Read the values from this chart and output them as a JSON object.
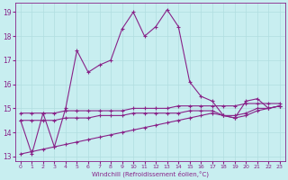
{
  "xlabel": "Windchill (Refroidissement éolien,°C)",
  "background_color": "#c8eef0",
  "grid_color": "#b0dde0",
  "line_color": "#882288",
  "xlim": [
    -0.5,
    23.5
  ],
  "ylim": [
    12.8,
    19.4
  ],
  "yticks": [
    13,
    14,
    15,
    16,
    17,
    18,
    19
  ],
  "xticks": [
    0,
    1,
    2,
    3,
    4,
    5,
    6,
    7,
    8,
    9,
    10,
    11,
    12,
    13,
    14,
    15,
    16,
    17,
    18,
    19,
    20,
    21,
    22,
    23
  ],
  "s1_x": [
    0,
    1,
    2,
    3,
    4,
    5,
    6,
    7,
    8,
    9,
    10,
    11,
    12,
    13,
    14,
    15,
    16,
    17,
    18,
    19,
    20,
    21,
    22,
    23
  ],
  "s1_y": [
    14.5,
    13.1,
    14.8,
    13.4,
    15.0,
    17.4,
    16.5,
    16.8,
    17.0,
    18.3,
    19.0,
    18.0,
    18.4,
    19.1,
    18.4,
    16.1,
    15.5,
    15.3,
    14.7,
    14.6,
    15.3,
    15.4,
    15.0,
    15.1
  ],
  "s2_x": [
    0,
    1,
    2,
    3,
    4,
    5,
    6,
    7,
    8,
    9,
    10,
    11,
    12,
    13,
    14,
    15,
    16,
    17,
    18,
    19,
    20,
    21,
    22,
    23
  ],
  "s2_y": [
    14.8,
    14.8,
    14.8,
    14.8,
    14.9,
    14.9,
    14.9,
    14.9,
    14.9,
    14.9,
    15.0,
    15.0,
    15.0,
    15.0,
    15.1,
    15.1,
    15.1,
    15.1,
    15.1,
    15.1,
    15.2,
    15.2,
    15.2,
    15.2
  ],
  "s3_x": [
    0,
    1,
    2,
    3,
    4,
    5,
    6,
    7,
    8,
    9,
    10,
    11,
    12,
    13,
    14,
    15,
    16,
    17,
    18,
    19,
    20,
    21,
    22,
    23
  ],
  "s3_y": [
    14.5,
    14.5,
    14.5,
    14.5,
    14.6,
    14.6,
    14.6,
    14.7,
    14.7,
    14.7,
    14.8,
    14.8,
    14.8,
    14.8,
    14.8,
    14.9,
    14.9,
    14.9,
    14.7,
    14.7,
    14.8,
    15.0,
    15.0,
    15.1
  ],
  "s4_x": [
    0,
    1,
    2,
    3,
    4,
    5,
    6,
    7,
    8,
    9,
    10,
    11,
    12,
    13,
    14,
    15,
    16,
    17,
    18,
    19,
    20,
    21,
    22,
    23
  ],
  "s4_y": [
    13.1,
    13.2,
    13.3,
    13.4,
    13.5,
    13.6,
    13.7,
    13.8,
    13.9,
    14.0,
    14.1,
    14.2,
    14.3,
    14.4,
    14.5,
    14.6,
    14.7,
    14.8,
    14.7,
    14.6,
    14.7,
    14.9,
    15.0,
    15.1
  ]
}
